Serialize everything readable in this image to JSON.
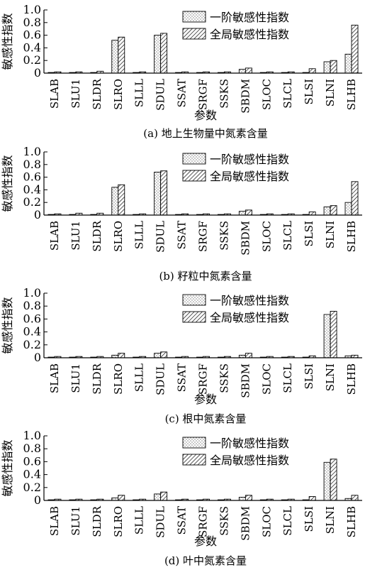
{
  "legend": {
    "first_order": "一阶敏感性指数",
    "global": "全局敏感性指数"
  },
  "chart_data": [
    {
      "type": "bar",
      "caption": "(a) 地上生物量中氮素含量",
      "ylabel": "敏感性指数",
      "xlabel": "参数",
      "ylim": [
        0,
        1.0
      ],
      "yticks": [
        "0",
        "0.2",
        "0.4",
        "0.6",
        "0.8",
        "1.0"
      ],
      "legend_position": "top-right",
      "categories": [
        "SLAB",
        "SLU1",
        "SLDR",
        "SLRO",
        "SLLL",
        "SDUL",
        "SSAT",
        "SRGF",
        "SSKS",
        "SBDM",
        "SLOC",
        "SLCL",
        "SLSI",
        "SLNI",
        "SLHB"
      ],
      "series": [
        {
          "name": "一阶敏感性指数",
          "values": [
            0.01,
            0.01,
            0.01,
            0.52,
            0.01,
            0.6,
            0.01,
            0.01,
            0.01,
            0.06,
            0.01,
            0.01,
            0.01,
            0.18,
            0.3
          ]
        },
        {
          "name": "全局敏感性指数",
          "values": [
            0.02,
            0.02,
            0.03,
            0.57,
            0.02,
            0.63,
            0.02,
            0.02,
            0.02,
            0.08,
            0.02,
            0.02,
            0.07,
            0.2,
            0.76
          ]
        }
      ]
    },
    {
      "type": "bar",
      "caption": "(b) 籽粒中氮素含量",
      "ylabel": "敏感性指数",
      "xlabel": "",
      "ylim": [
        0,
        1.0
      ],
      "yticks": [
        "0",
        "0.2",
        "0.4",
        "0.6",
        "0.8",
        "1.0"
      ],
      "legend_position": "top-right",
      "categories": [
        "SLAB",
        "SLU1",
        "SLDR",
        "SLRO",
        "SLLL",
        "SDUL",
        "SSAT",
        "SRGF",
        "SSKS",
        "SBDM",
        "SLOC",
        "SLCL",
        "SLSI",
        "SLNI",
        "SLHB"
      ],
      "series": [
        {
          "name": "一阶敏感性指数",
          "values": [
            0.01,
            0.01,
            0.01,
            0.44,
            0.01,
            0.68,
            0.01,
            0.01,
            0.01,
            0.06,
            0.01,
            0.01,
            0.01,
            0.13,
            0.2
          ]
        },
        {
          "name": "全局敏感性指数",
          "values": [
            0.02,
            0.03,
            0.03,
            0.48,
            0.02,
            0.7,
            0.02,
            0.02,
            0.02,
            0.08,
            0.02,
            0.02,
            0.05,
            0.15,
            0.53
          ]
        }
      ]
    },
    {
      "type": "bar",
      "caption": "(c) 根中氮素含量",
      "ylabel": "敏感性指数",
      "xlabel": "参数",
      "ylim": [
        0,
        1.0
      ],
      "yticks": [
        "0",
        "0.2",
        "0.4",
        "0.6",
        "0.8",
        "1.0"
      ],
      "legend_position": "top-right",
      "categories": [
        "SLAB",
        "SLU1",
        "SLDR",
        "SLRO",
        "SLLL",
        "SDUL",
        "SSAT",
        "SRGF",
        "SSKS",
        "SBDM",
        "SLOC",
        "SLCL",
        "SLSI",
        "SLNI",
        "SLHB"
      ],
      "series": [
        {
          "name": "一阶敏感性指数",
          "values": [
            0.01,
            0.01,
            0.01,
            0.04,
            0.01,
            0.07,
            0.01,
            0.01,
            0.01,
            0.04,
            0.01,
            0.01,
            0.01,
            0.67,
            0.03
          ]
        },
        {
          "name": "全局敏感性指数",
          "values": [
            0.02,
            0.02,
            0.02,
            0.07,
            0.02,
            0.09,
            0.02,
            0.02,
            0.02,
            0.07,
            0.02,
            0.02,
            0.03,
            0.72,
            0.04
          ]
        }
      ]
    },
    {
      "type": "bar",
      "caption": "(d) 叶中氮素含量",
      "ylabel": "敏感性指数",
      "xlabel": "参数",
      "ylim": [
        0,
        1.0
      ],
      "yticks": [
        "0",
        "0.2",
        "0.4",
        "0.6",
        "0.8",
        "1.0"
      ],
      "legend_position": "top-right",
      "categories": [
        "SLAB",
        "SLU1",
        "SLDR",
        "SLRO",
        "SLLL",
        "SDUL",
        "SSAT",
        "SRGF",
        "SSKS",
        "SBDM",
        "SLOC",
        "SLCL",
        "SLSI",
        "SLNI",
        "SLHB"
      ],
      "series": [
        {
          "name": "一阶敏感性指数",
          "values": [
            0.01,
            0.01,
            0.01,
            0.04,
            0.01,
            0.1,
            0.01,
            0.01,
            0.01,
            0.05,
            0.01,
            0.01,
            0.01,
            0.59,
            0.03
          ]
        },
        {
          "name": "全局敏感性指数",
          "values": [
            0.02,
            0.02,
            0.02,
            0.08,
            0.02,
            0.13,
            0.02,
            0.02,
            0.02,
            0.08,
            0.02,
            0.02,
            0.06,
            0.64,
            0.08
          ]
        }
      ]
    }
  ]
}
